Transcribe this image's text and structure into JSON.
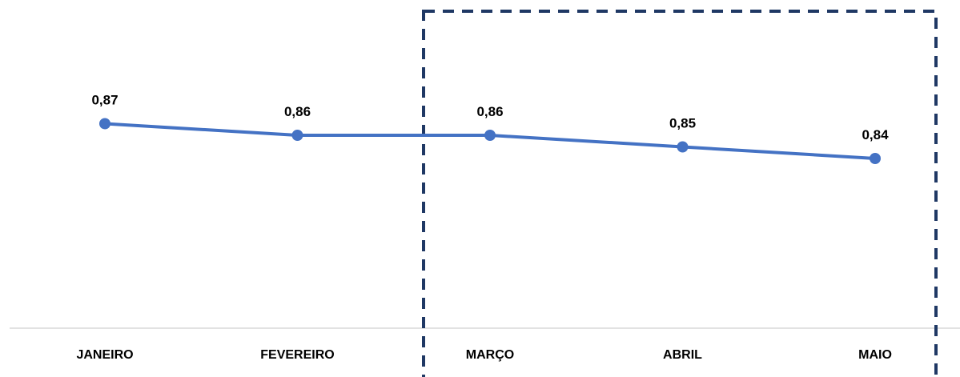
{
  "chart_data": {
    "type": "line",
    "categories": [
      "JANEIRO",
      "FEVEREIRO",
      "MARÇO",
      "ABRIL",
      "MAIO"
    ],
    "series": [
      {
        "values": [
          0.87,
          0.86,
          0.86,
          0.85,
          0.84
        ],
        "labels": [
          "0,87",
          "0,86",
          "0,86",
          "0,85",
          "0,84"
        ],
        "color": "#4472C4"
      }
    ],
    "title": "",
    "xlabel": "",
    "ylabel": "",
    "ylim": [
      0,
      1
    ],
    "grid": false,
    "legend": "none",
    "highlight": {
      "from_category": "MARÇO",
      "to_category": "MAIO",
      "style": "dashed",
      "color": "#1F3864"
    },
    "baseline_color": "#D9D9D9"
  }
}
